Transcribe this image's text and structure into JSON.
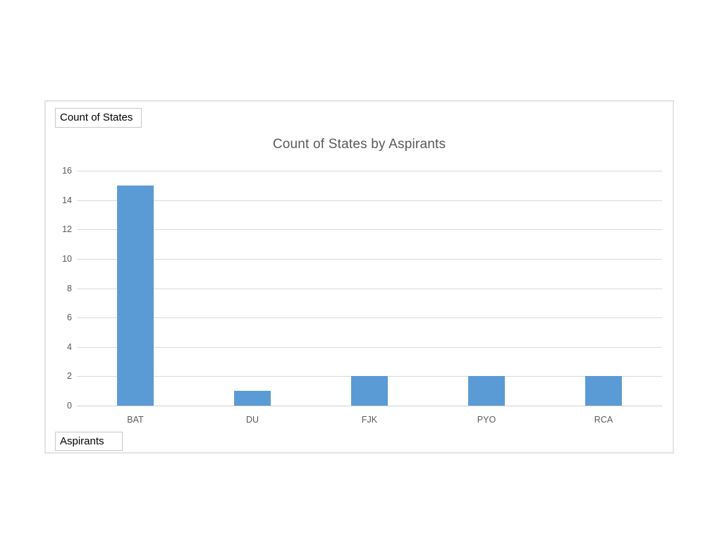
{
  "window": {
    "background": "#ffffff"
  },
  "chart": {
    "title": "Count of States by Aspirants",
    "value_field_button": "Count of States",
    "axis_field_button": "Aspirants",
    "colors": {
      "bar": "#5b9bd5",
      "title_text": "#595959",
      "axis_text": "#595959",
      "gridline": "#d9d9d9",
      "chart_border": "#e3e3e3",
      "field_button_border": "#c9c7c5",
      "field_button_text": "#000000"
    }
  },
  "chart_data": {
    "type": "bar",
    "title": "Count of States by Aspirants",
    "categories": [
      "BAT",
      "DU",
      "FJK",
      "PYO",
      "RCA"
    ],
    "values": [
      15,
      1,
      2,
      2,
      2
    ],
    "xlabel": "Aspirants",
    "ylabel": "Count of States",
    "ylim": [
      0,
      16
    ],
    "ytick_step": 2,
    "yticks": [
      0,
      2,
      4,
      6,
      8,
      10,
      12,
      14,
      16
    ],
    "grid": true,
    "legend_position": "none",
    "bar_color": "#5b9bd5"
  }
}
